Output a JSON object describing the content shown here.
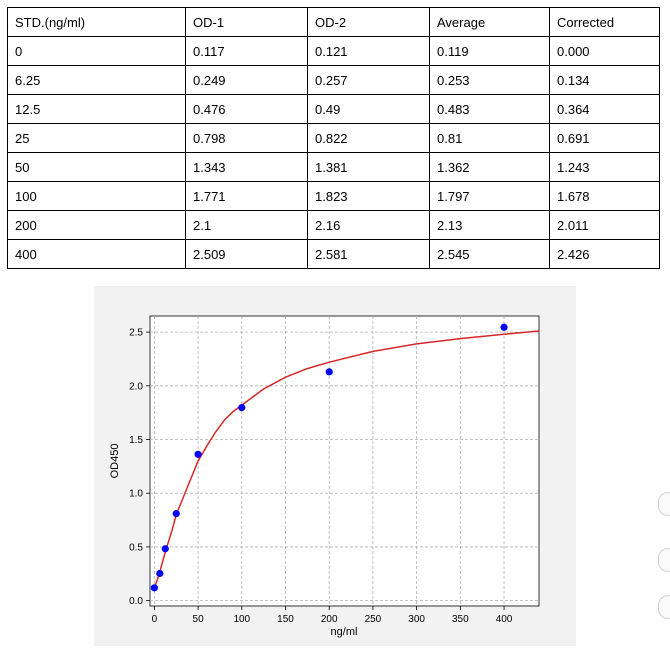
{
  "table": {
    "headers": [
      "STD.(ng/ml)",
      "OD-1",
      "OD-2",
      "Average",
      "Corrected"
    ],
    "rows": [
      [
        "0",
        "0.117",
        "0.121",
        "0.119",
        "0.000"
      ],
      [
        "6.25",
        "0.249",
        "0.257",
        "0.253",
        "0.134"
      ],
      [
        "12.5",
        "0.476",
        "0.49",
        "0.483",
        "0.364"
      ],
      [
        "25",
        "0.798",
        "0.822",
        "0.81",
        "0.691"
      ],
      [
        "50",
        "1.343",
        "1.381",
        "1.362",
        "1.243"
      ],
      [
        "100",
        "1.771",
        "1.823",
        "1.797",
        "1.678"
      ],
      [
        "200",
        "2.1",
        "2.16",
        "2.13",
        "2.011"
      ],
      [
        "400",
        "2.509",
        "2.581",
        "2.545",
        "2.426"
      ]
    ]
  },
  "chart_data": {
    "type": "scatter",
    "xlabel": "ng/ml",
    "ylabel": "OD450",
    "xlim": [
      -5,
      440
    ],
    "ylim": [
      -0.05,
      2.65
    ],
    "xticks": [
      0,
      50,
      100,
      150,
      200,
      250,
      300,
      350,
      400
    ],
    "yticks": [
      0.0,
      0.5,
      1.0,
      1.5,
      2.0,
      2.5
    ],
    "grid": true,
    "points": {
      "x": [
        0,
        6.25,
        12.5,
        25,
        50,
        100,
        200,
        400
      ],
      "y": [
        0.119,
        0.253,
        0.483,
        0.81,
        1.362,
        1.797,
        2.13,
        2.545
      ]
    },
    "fit_curve": {
      "x": [
        0,
        5,
        10,
        15,
        20,
        25,
        30,
        40,
        50,
        60,
        70,
        80,
        90,
        100,
        125,
        150,
        175,
        200,
        250,
        300,
        350,
        400,
        440
      ],
      "y": [
        0.12,
        0.23,
        0.38,
        0.52,
        0.65,
        0.8,
        0.9,
        1.1,
        1.3,
        1.44,
        1.57,
        1.68,
        1.76,
        1.82,
        1.97,
        2.08,
        2.16,
        2.22,
        2.32,
        2.39,
        2.44,
        2.48,
        2.51
      ]
    },
    "colors": {
      "points": "#0000ff",
      "curve": "#d62728"
    }
  }
}
